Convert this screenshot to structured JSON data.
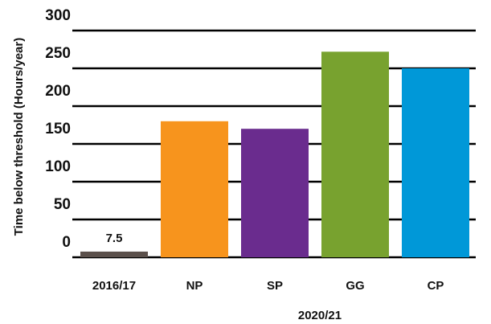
{
  "chart_data": {
    "type": "bar",
    "y_label": "Time below threshold (Hours/year)",
    "x_group_label": "2020/21",
    "categories": [
      "2016/17",
      "NP",
      "SP",
      "GG",
      "CP"
    ],
    "values": [
      7.5,
      180,
      170,
      272,
      250
    ],
    "colors": [
      "#5b504b",
      "#f7941d",
      "#6a2c8e",
      "#78a22f",
      "#0098d8"
    ],
    "ylim": [
      0,
      300
    ],
    "yticks": [
      0,
      50,
      100,
      150,
      200,
      250,
      300
    ],
    "grid": true
  }
}
